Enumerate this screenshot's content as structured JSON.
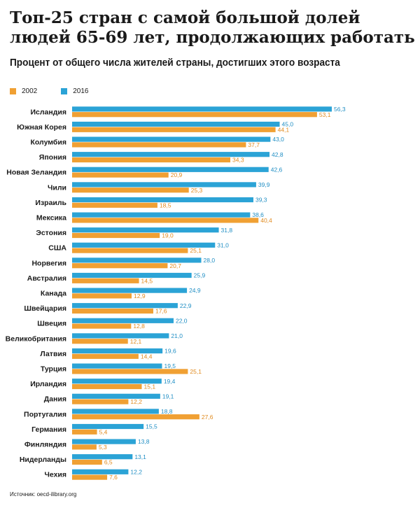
{
  "header": {
    "title": "Топ-25 стран с самой большой долей людей 65-69 лет, продолжающих работать",
    "subtitle": "Процент от общего числа жителей страны, достигших этого возраста"
  },
  "legend": [
    {
      "label": "2002",
      "color": "#f0a033"
    },
    {
      "label": "2016",
      "color": "#2ba3d6"
    }
  ],
  "footer": {
    "source": "Источник: oecd-ilibrary.org"
  },
  "chart_data": {
    "type": "bar",
    "orientation": "horizontal",
    "categories": [
      "Исландия",
      "Южная Корея",
      "Колумбия",
      "Япония",
      "Новая Зеландия",
      "Чили",
      "Израиль",
      "Мексика",
      "Эстония",
      "США",
      "Норвегия",
      "Австралия",
      "Канада",
      "Швейцария",
      "Швеция",
      "Великобритания",
      "Латвия",
      "Турция",
      "Ирландия",
      "Дания",
      "Португалия",
      "Германия",
      "Финляндия",
      "Нидерланды",
      "Чехия"
    ],
    "series": [
      {
        "name": "2016",
        "color": "#2ba3d6",
        "values": [
          56.3,
          45.0,
          43.0,
          42.8,
          42.6,
          39.9,
          39.3,
          38.6,
          31.8,
          31.0,
          28.0,
          25.9,
          24.9,
          22.9,
          22.0,
          21.0,
          19.6,
          19.5,
          19.4,
          19.1,
          18.8,
          15.5,
          13.8,
          13.1,
          12.2
        ]
      },
      {
        "name": "2002",
        "color": "#f0a033",
        "values": [
          53.1,
          44.1,
          37.7,
          34.3,
          20.9,
          25.3,
          18.5,
          40.4,
          19.0,
          25.1,
          20.7,
          14.5,
          12.9,
          17.6,
          12.8,
          12.1,
          14.4,
          25.1,
          15.1,
          12.2,
          27.6,
          5.4,
          5.3,
          6.5,
          7.6
        ]
      }
    ],
    "value_labels": {
      "2016": [
        "56,3",
        "45,0",
        "43,0",
        "42,8",
        "42,6",
        "39,9",
        "39,3",
        "38,6",
        "31,8",
        "31,0",
        "28,0",
        "25,9",
        "24,9",
        "22,9",
        "22,0",
        "21,0",
        "19,6",
        "19,5",
        "19,4",
        "19,1",
        "18,8",
        "15,5",
        "13,8",
        "13,1",
        "12,2"
      ],
      "2002": [
        "53,1",
        "44,1",
        "37,7",
        "34,3",
        "20,9",
        "25,3",
        "18,5",
        "40,4",
        "19,0",
        "25,1",
        "20,7",
        "14,5",
        "12,9",
        "17,6",
        "12,8",
        "12,1",
        "14,4",
        "25,1",
        "15,1",
        "12,2",
        "27,6",
        "5,4",
        "5,3",
        "6,5",
        "7,6"
      ]
    },
    "xlim": [
      0,
      56.3
    ],
    "grid": false,
    "legend_position": "top-left"
  }
}
